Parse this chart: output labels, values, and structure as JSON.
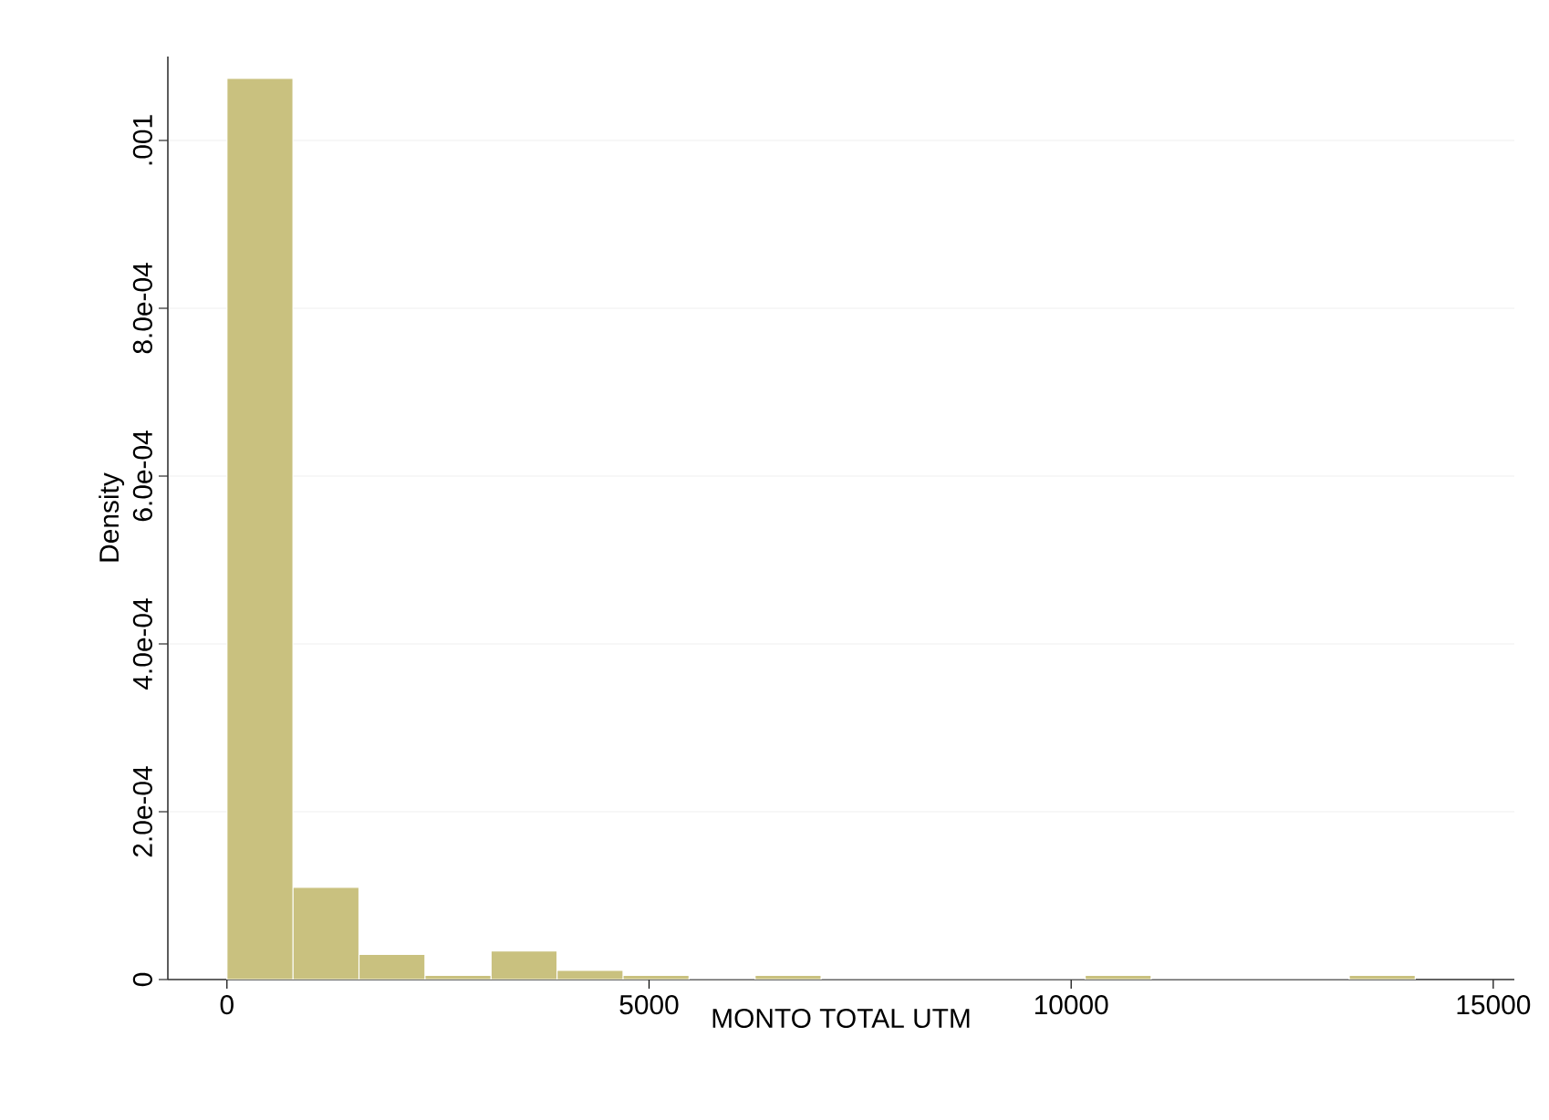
{
  "chart_data": {
    "type": "histogram",
    "xlabel": "MONTO TOTAL UTM",
    "ylabel": "Density",
    "bins": [
      0,
      782,
      1564,
      2346,
      3128,
      3910,
      4692,
      5474,
      6256,
      7038,
      7820,
      8602,
      9384,
      10166,
      10948,
      11730,
      12512,
      13294,
      14076
    ],
    "values": [
      0.001074,
      0.00011,
      3e-05,
      5e-06,
      3.4e-05,
      1.1e-05,
      5e-06,
      0,
      5e-06,
      0,
      0,
      0,
      0,
      5e-06,
      0,
      0,
      0,
      5e-06
    ],
    "color": "#c9c17f",
    "xlim": [
      -700,
      15250
    ],
    "ylim": [
      0,
      0.0011
    ],
    "xticks": [
      0,
      5000,
      10000,
      15000
    ],
    "yticks": [
      {
        "value": 0,
        "label": "0"
      },
      {
        "value": 0.0002,
        "label": "2.0e-04"
      },
      {
        "value": 0.0004,
        "label": "4.0e-04"
      },
      {
        "value": 0.0006,
        "label": "6.0e-04"
      },
      {
        "value": 0.0008,
        "label": "8.0e-04"
      },
      {
        "value": 0.001,
        "label": ".001"
      }
    ],
    "grid": "y"
  }
}
